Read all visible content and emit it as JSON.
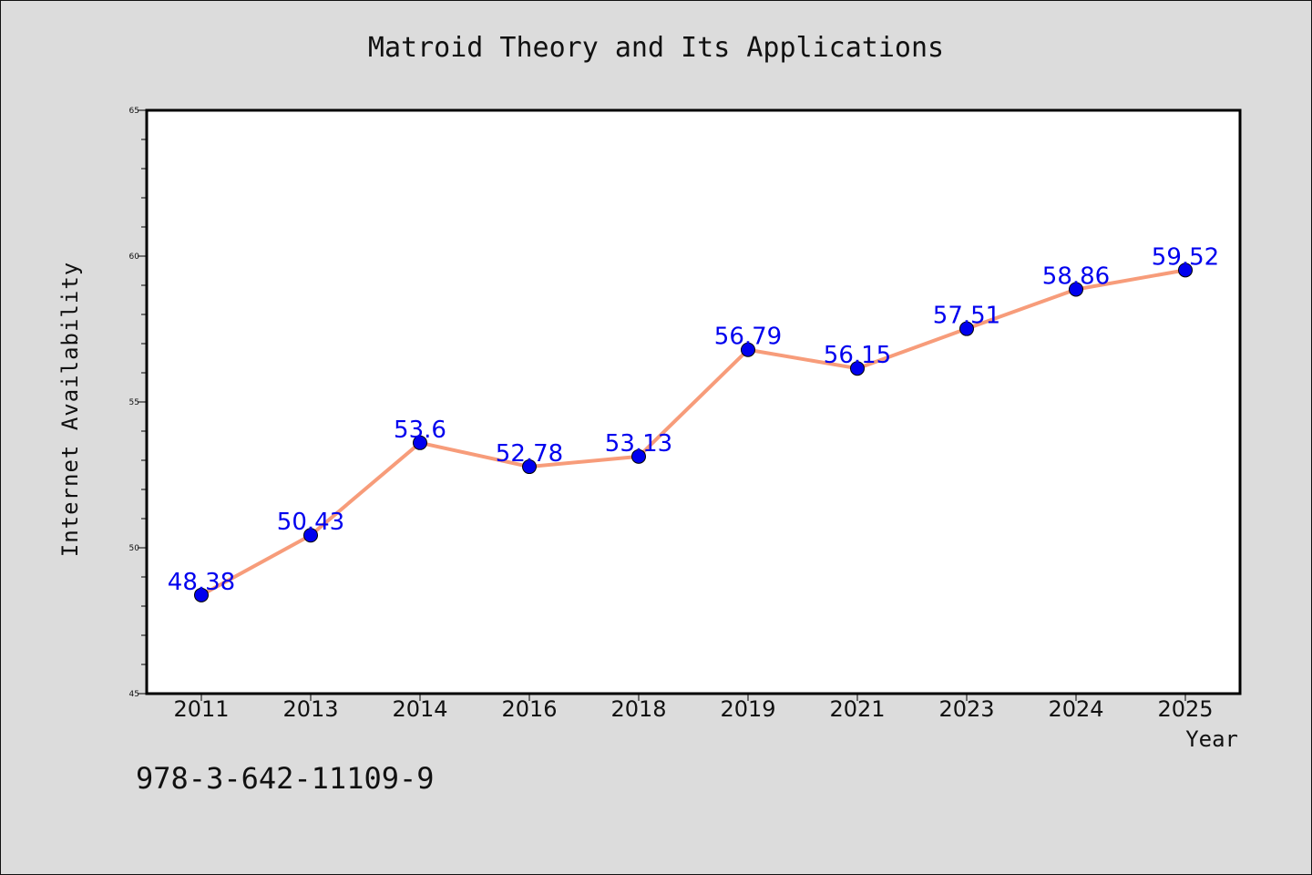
{
  "chart_data": {
    "type": "line",
    "title": "Matroid Theory and Its Applications",
    "xlabel": "Year",
    "ylabel": "Internet Availability",
    "categories": [
      "2011",
      "2013",
      "2014",
      "2016",
      "2018",
      "2019",
      "2021",
      "2023",
      "2024",
      "2025"
    ],
    "series": [
      {
        "values": [
          48.38,
          50.43,
          53.6,
          52.78,
          53.13,
          56.79,
          56.15,
          57.51,
          58.86,
          59.52
        ],
        "data_labels": [
          "48.38",
          "50.43",
          "53.6",
          "52.78",
          "53.13",
          "56.79",
          "56.15",
          "57.51",
          "58.86",
          "59.52"
        ],
        "line_color": "#f79c7a",
        "marker_color": "#0000ee",
        "label_color": "#0000ee"
      }
    ],
    "ylim": [
      45,
      65
    ],
    "yticks": [
      45,
      50,
      55,
      60,
      65
    ],
    "ytick_labels": [
      "45",
      "50",
      "55",
      "60",
      "65"
    ],
    "grid": false,
    "legend": "none"
  },
  "footer": {
    "code": "978-3-642-11109-9"
  },
  "colors": {
    "background": "#dcdcdc",
    "plot_background": "#ffffff",
    "axis": "#000000"
  }
}
